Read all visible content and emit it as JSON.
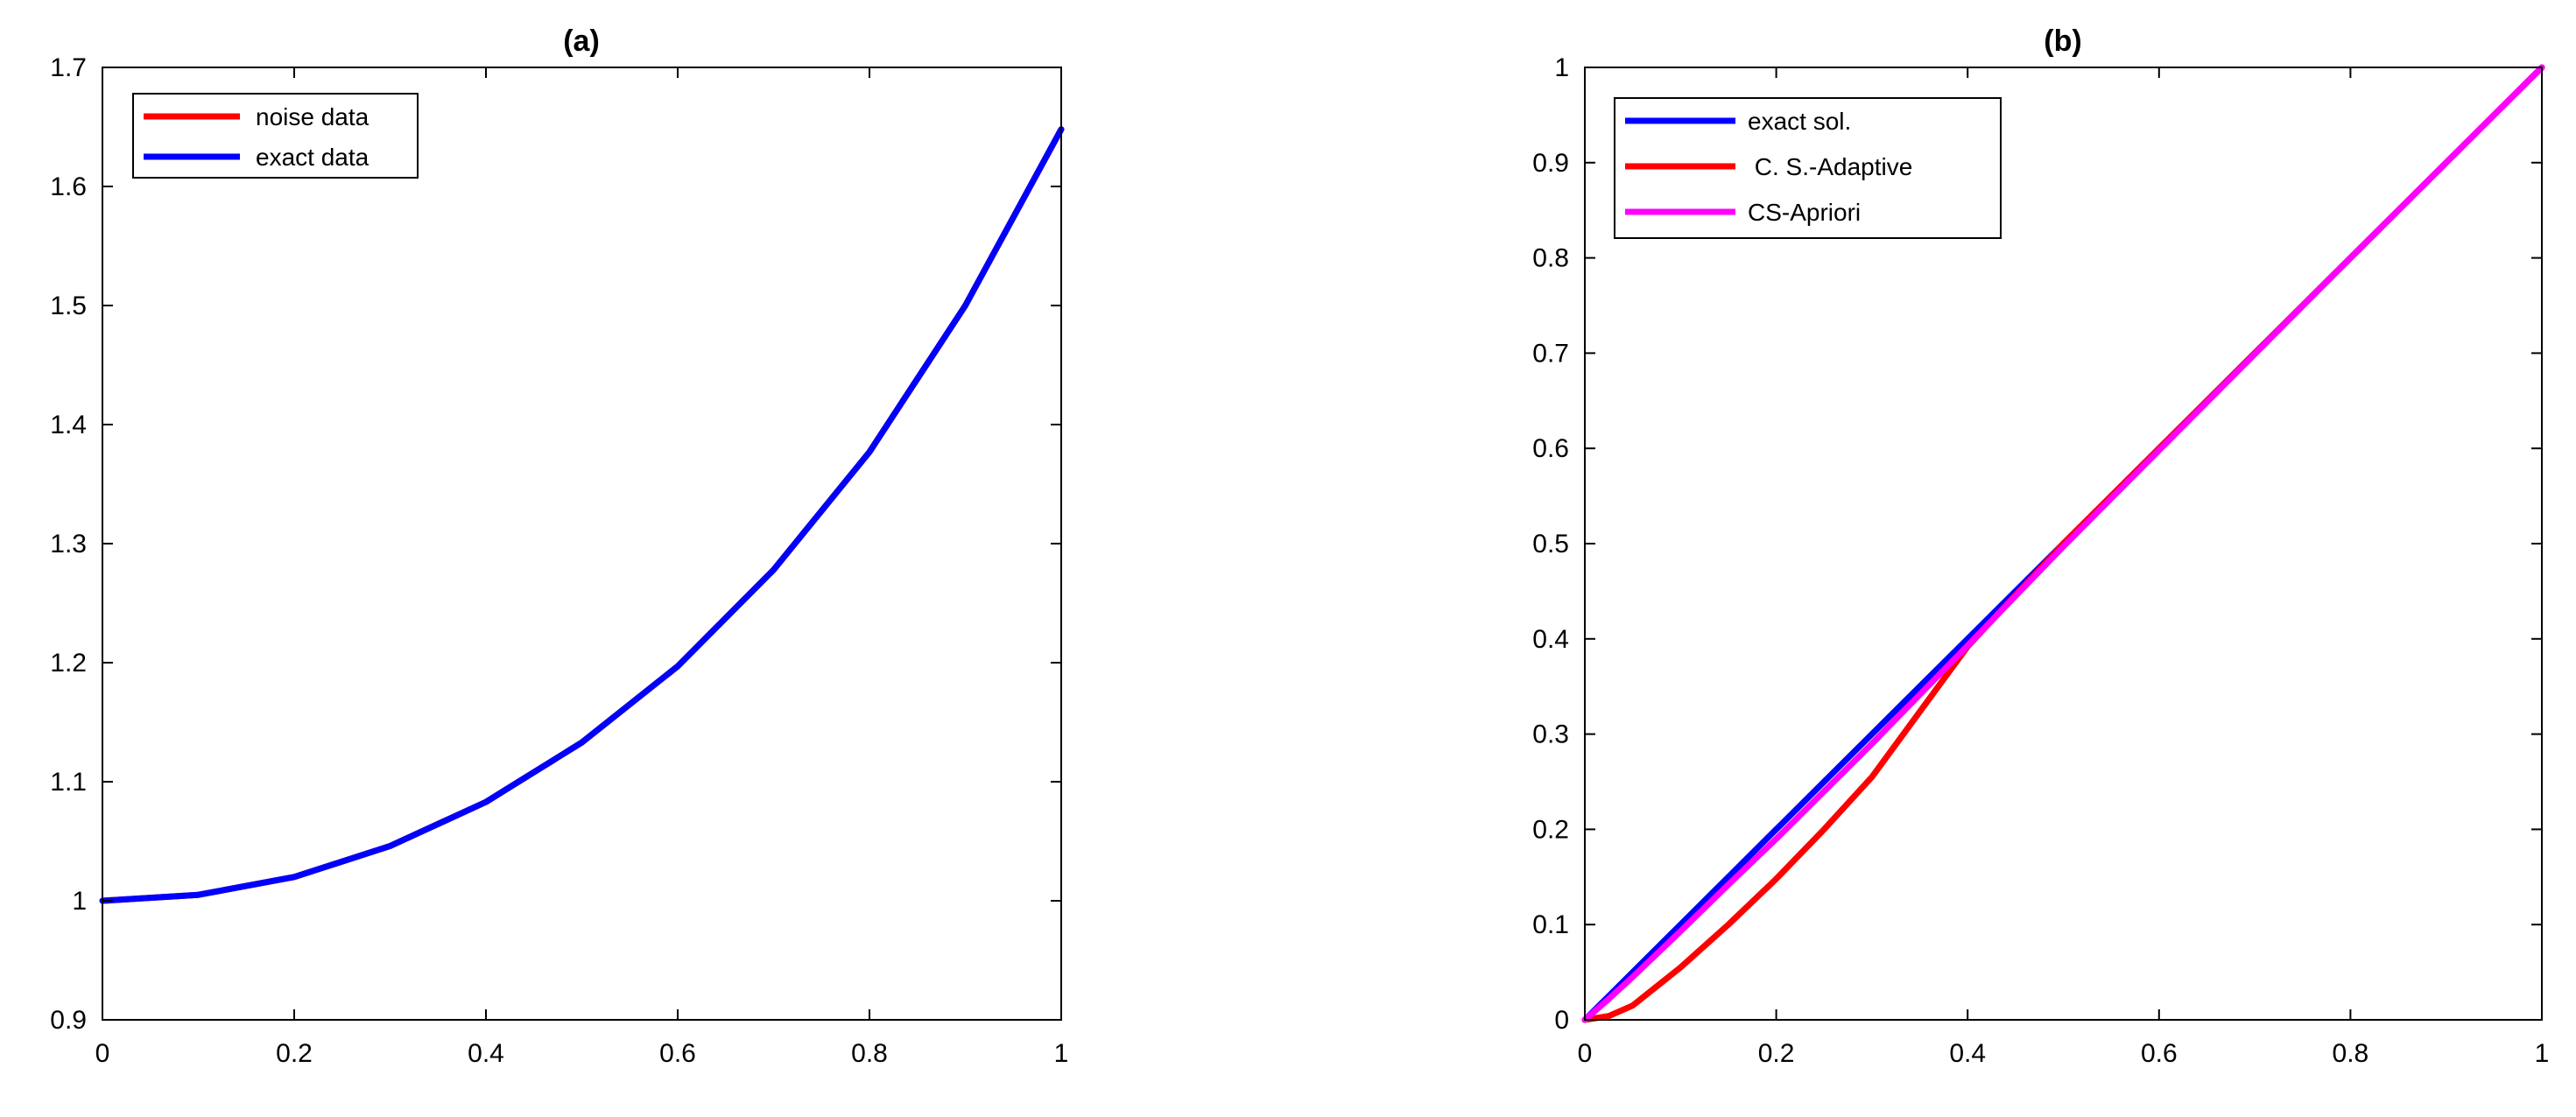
{
  "chart_data": [
    {
      "type": "line",
      "title": "(a)",
      "xlabel": "",
      "ylabel": "",
      "xlim": [
        0,
        1
      ],
      "ylim": [
        0.9,
        1.7
      ],
      "xticks": [
        0,
        0.2,
        0.4,
        0.6,
        0.8,
        1
      ],
      "xtick_labels": [
        "0",
        "0.2",
        "0.4",
        "0.6",
        "0.8",
        "1"
      ],
      "yticks": [
        0.9,
        1.0,
        1.1,
        1.2,
        1.3,
        1.4,
        1.5,
        1.6,
        1.7
      ],
      "ytick_labels": [
        "0.9",
        "1",
        "1.1",
        "1.2",
        "1.3",
        "1.4",
        "1.5",
        "1.6",
        "1.7"
      ],
      "grid": false,
      "legend_position": "top-left",
      "x": [
        0,
        0.1,
        0.2,
        0.3,
        0.4,
        0.5,
        0.6,
        0.7,
        0.8,
        0.9,
        1.0
      ],
      "series": [
        {
          "name": "noise data",
          "color": "#ff0000",
          "values": [
            1.0,
            1.005,
            1.02,
            1.046,
            1.083,
            1.133,
            1.197,
            1.278,
            1.377,
            1.5,
            1.648
          ]
        },
        {
          "name": "exact data",
          "color": "#0000ff",
          "values": [
            1.0,
            1.005,
            1.02,
            1.046,
            1.083,
            1.133,
            1.197,
            1.278,
            1.377,
            1.5,
            1.648
          ]
        }
      ]
    },
    {
      "type": "line",
      "title": "(b)",
      "xlabel": "",
      "ylabel": "",
      "xlim": [
        0,
        1
      ],
      "ylim": [
        0,
        1
      ],
      "xticks": [
        0,
        0.2,
        0.4,
        0.6,
        0.8,
        1
      ],
      "xtick_labels": [
        "0",
        "0.2",
        "0.4",
        "0.6",
        "0.8",
        "1"
      ],
      "yticks": [
        0,
        0.1,
        0.2,
        0.3,
        0.4,
        0.5,
        0.6,
        0.7,
        0.8,
        0.9,
        1
      ],
      "ytick_labels": [
        "0",
        "0.1",
        "0.2",
        "0.3",
        "0.4",
        "0.5",
        "0.6",
        "0.7",
        "0.8",
        "0.9",
        "1"
      ],
      "grid": false,
      "legend_position": "top-left",
      "x": [
        0,
        0.025,
        0.05,
        0.1,
        0.15,
        0.2,
        0.25,
        0.3,
        0.4,
        0.5,
        0.6,
        0.7,
        0.8,
        0.9,
        1.0
      ],
      "series": [
        {
          "name": "exact sol.",
          "color": "#0000ff",
          "values": [
            0,
            0.025,
            0.05,
            0.1,
            0.15,
            0.2,
            0.25,
            0.3,
            0.4,
            0.5,
            0.6,
            0.7,
            0.8,
            0.9,
            1.0
          ]
        },
        {
          "name": " C. S.-Adaptive",
          "color": "#ff0000",
          "values": [
            0,
            0.004,
            0.015,
            0.055,
            0.1,
            0.148,
            0.2,
            0.255,
            0.392,
            0.5,
            0.6,
            0.7,
            0.8,
            0.9,
            1.0
          ]
        },
        {
          "name": "CS-Apriori",
          "color": "#ff00ff",
          "values": [
            0,
            0.022,
            0.045,
            0.093,
            0.142,
            0.19,
            0.24,
            0.29,
            0.393,
            0.497,
            0.598,
            0.699,
            0.8,
            0.9,
            1.0
          ]
        }
      ]
    }
  ]
}
